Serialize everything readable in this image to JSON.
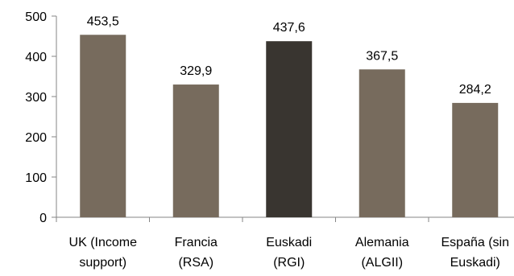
{
  "chart_data": {
    "type": "bar",
    "categories": [
      [
        "UK (Income",
        "support)"
      ],
      [
        "Francia",
        "(RSA)"
      ],
      [
        "Euskadi",
        "(RGI)"
      ],
      [
        "Alemania",
        "(ALGII)"
      ],
      [
        "España (sin",
        "Euskadi)"
      ]
    ],
    "values": [
      453.5,
      329.9,
      437.6,
      367.5,
      284.2
    ],
    "data_labels": [
      "453,5",
      "329,9",
      "437,6",
      "367,5",
      "284,2"
    ],
    "y_ticks": [
      "0",
      "100",
      "200",
      "300",
      "400",
      "500"
    ],
    "ylim": [
      0,
      500
    ],
    "grid": false,
    "legend": "none",
    "title": "",
    "xlabel": "",
    "ylabel": "",
    "colors": {
      "default_bar": "#776b5d",
      "highlight_bar": "#393530",
      "axis": "#868686"
    },
    "highlight_index": 2
  }
}
